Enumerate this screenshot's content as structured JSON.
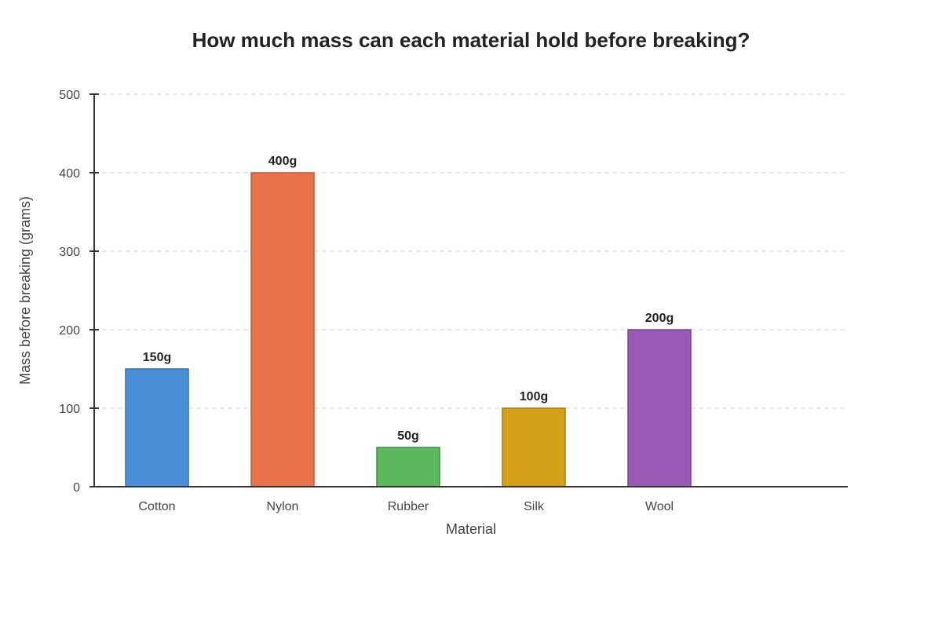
{
  "chart_data": {
    "type": "bar",
    "title": "How much mass can each material hold before breaking?",
    "xlabel": "Material",
    "ylabel": "Mass before breaking (grams)",
    "categories": [
      "Cotton",
      "Nylon",
      "Rubber",
      "Silk",
      "Wool"
    ],
    "values": [
      150,
      400,
      50,
      100,
      200
    ],
    "value_labels": [
      "150g",
      "400g",
      "50g",
      "100g",
      "200g"
    ],
    "bar_colors": [
      "#4a90d9",
      "#e8734a",
      "#5cb85c",
      "#d4a017",
      "#9b59b6"
    ],
    "bar_border_colors": [
      "#3a6fa8",
      "#b8593a",
      "#3f8f3f",
      "#a47c10",
      "#7a4090"
    ],
    "ylim": [
      0,
      500
    ],
    "yticks": [
      0,
      100,
      200,
      300,
      400,
      500
    ],
    "ytick_labels": [
      "0",
      "100",
      "200",
      "300",
      "400",
      "500"
    ],
    "grid": true,
    "grid_style": "dashed",
    "legend": "none"
  }
}
